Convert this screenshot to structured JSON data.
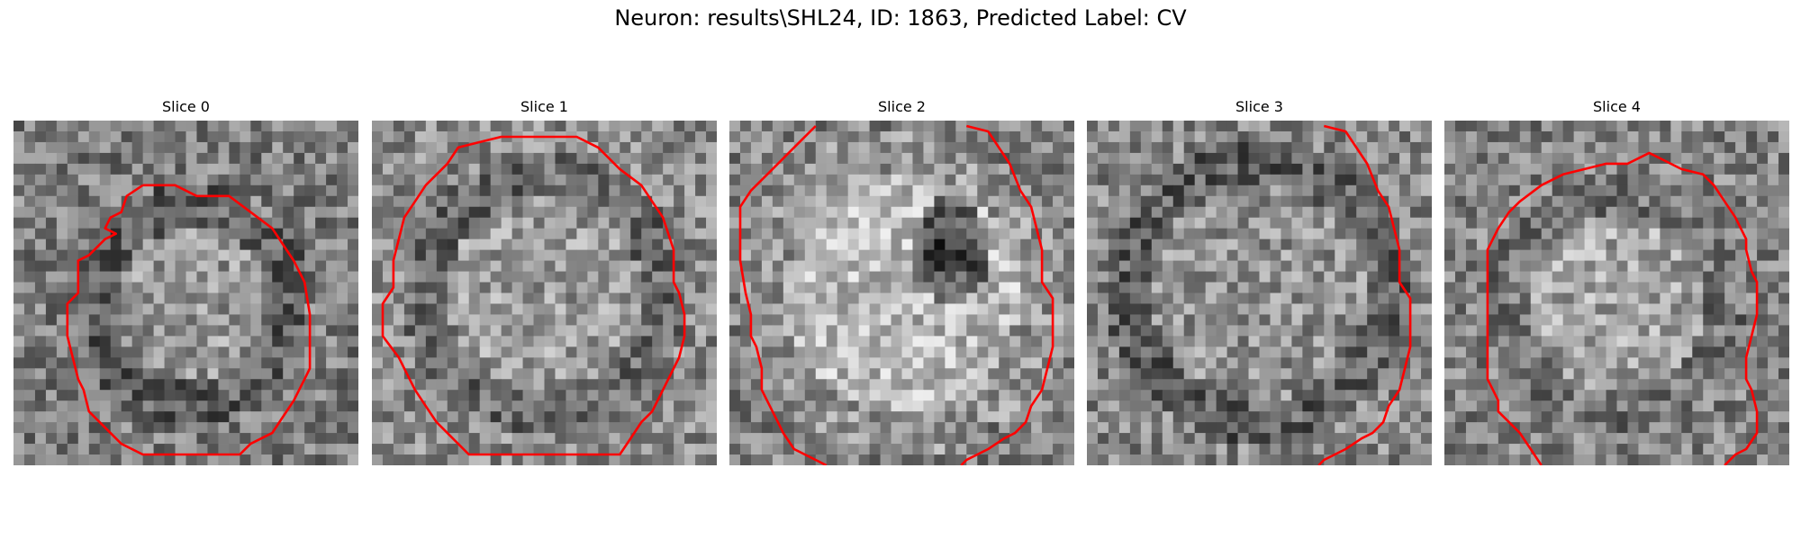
{
  "figure": {
    "title": "Neuron: results\\SHL24, ID: 1863, Predicted Label: CV"
  },
  "colors": {
    "contour": "#ff0000",
    "background": "#ffffff"
  },
  "panels": [
    {
      "title": "Slice 0",
      "center": [
        0.5,
        0.55
      ],
      "blob": "bright",
      "contour": "closed"
    },
    {
      "title": "Slice 1",
      "center": [
        0.5,
        0.5
      ],
      "blob": "even",
      "contour": "closed"
    },
    {
      "title": "Slice 2",
      "center": [
        0.5,
        0.5
      ],
      "blob": "bright-with-dark-spot",
      "contour": "open"
    },
    {
      "title": "Slice 3",
      "center": [
        0.5,
        0.5
      ],
      "blob": "even",
      "contour": "open"
    },
    {
      "title": "Slice 4",
      "center": [
        0.5,
        0.55
      ],
      "blob": "bright",
      "contour": "open"
    }
  ]
}
